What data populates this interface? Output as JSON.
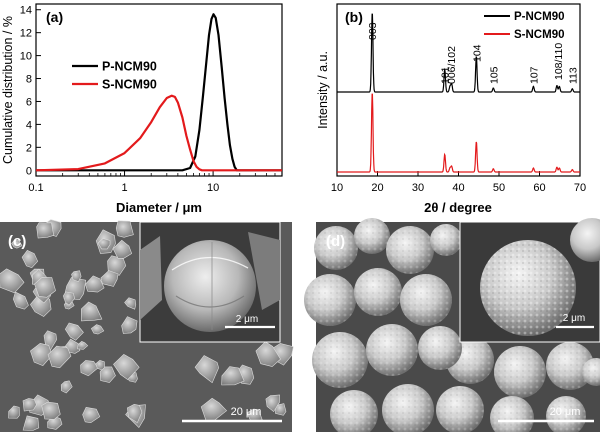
{
  "panels": {
    "a": {
      "tag": "(a)",
      "ylabel": "Cumulative distribution / %",
      "xlabel": "Diameter / μm"
    },
    "b": {
      "tag": "(b)",
      "ylabel": "Intensity / a.u.",
      "xlabel": "2θ / degree"
    },
    "c": {
      "tag": "(c)",
      "scale_inset": "2 μm",
      "scale_main": "20 μm"
    },
    "d": {
      "tag": "(d)",
      "scale_inset": "2 μm",
      "scale_main": "20 μm"
    }
  },
  "colors": {
    "p_ncm90": "#000000",
    "s_ncm90": "#e31a1c"
  },
  "chart_data": [
    {
      "type": "line",
      "panel": "a",
      "xscale": "log",
      "xlim": [
        0.1,
        60
      ],
      "ylim": [
        -0.5,
        14.5
      ],
      "xticks": [
        0.1,
        1,
        10
      ],
      "xtick_labels": [
        "0.1",
        "1",
        "10"
      ],
      "yticks": [
        0,
        2,
        4,
        6,
        8,
        10,
        12,
        14
      ],
      "ytick_labels": [
        "0",
        "2",
        "4",
        "6",
        "8",
        "10",
        "12",
        "14"
      ],
      "legend_position": "center",
      "series": [
        {
          "name": "P-NCM90",
          "color": "#000000",
          "x": [
            0.1,
            4.5,
            5.5,
            6.3,
            7.0,
            7.7,
            8.4,
            9.0,
            9.6,
            10.1,
            10.7,
            11.5,
            12.5,
            13.5,
            14.5,
            15.5,
            16.5,
            17.5,
            18.5,
            60
          ],
          "y": [
            0,
            0,
            0.2,
            1.2,
            3.5,
            6.5,
            9.5,
            11.8,
            13.2,
            13.6,
            13.3,
            11.8,
            9.0,
            6.3,
            4.0,
            2.2,
            1.0,
            0.3,
            0,
            0
          ]
        },
        {
          "name": "S-NCM90",
          "color": "#e31a1c",
          "x": [
            0.1,
            0.3,
            0.6,
            1.0,
            1.5,
            2.0,
            2.5,
            3.0,
            3.4,
            3.7,
            4.0,
            4.5,
            5.0,
            5.5,
            6.0,
            6.5,
            7.0,
            7.5,
            60
          ],
          "y": [
            0,
            0.1,
            0.6,
            1.5,
            2.8,
            4.2,
            5.5,
            6.3,
            6.5,
            6.4,
            5.9,
            4.6,
            3.0,
            1.8,
            0.8,
            0.3,
            0.08,
            0,
            0
          ]
        }
      ]
    },
    {
      "type": "line",
      "panel": "b",
      "xlim": [
        10,
        70
      ],
      "xticks": [
        10,
        20,
        30,
        40,
        50,
        60,
        70
      ],
      "xtick_labels": [
        "10",
        "20",
        "30",
        "40",
        "50",
        "60",
        "70"
      ],
      "legend_position": "top-right",
      "peak_labels": [
        {
          "label": "003",
          "x": 18.7
        },
        {
          "label": "101",
          "x": 36.5
        },
        {
          "label": "006/102",
          "x": 38.2
        },
        {
          "label": "104",
          "x": 44.4
        },
        {
          "label": "105",
          "x": 48.6
        },
        {
          "label": "107",
          "x": 58.5
        },
        {
          "label": "108/110",
          "x": 64.6
        },
        {
          "label": "113",
          "x": 68.1
        }
      ],
      "series": [
        {
          "name": "P-NCM90",
          "color": "#000000",
          "peaks": [
            [
              18.7,
              1.0
            ],
            [
              36.6,
              0.28
            ],
            [
              37.9,
              0.07
            ],
            [
              38.3,
              0.1
            ],
            [
              44.4,
              0.45
            ],
            [
              48.6,
              0.05
            ],
            [
              58.5,
              0.07
            ],
            [
              64.3,
              0.08
            ],
            [
              64.9,
              0.07
            ],
            [
              68.1,
              0.04
            ]
          ]
        },
        {
          "name": "S-NCM90",
          "color": "#e31a1c",
          "peaks": [
            [
              18.7,
              1.0
            ],
            [
              36.6,
              0.22
            ],
            [
              37.9,
              0.05
            ],
            [
              38.3,
              0.07
            ],
            [
              44.4,
              0.38
            ],
            [
              48.6,
              0.04
            ],
            [
              58.5,
              0.05
            ],
            [
              64.3,
              0.06
            ],
            [
              64.9,
              0.05
            ],
            [
              68.1,
              0.03
            ]
          ]
        }
      ]
    }
  ]
}
